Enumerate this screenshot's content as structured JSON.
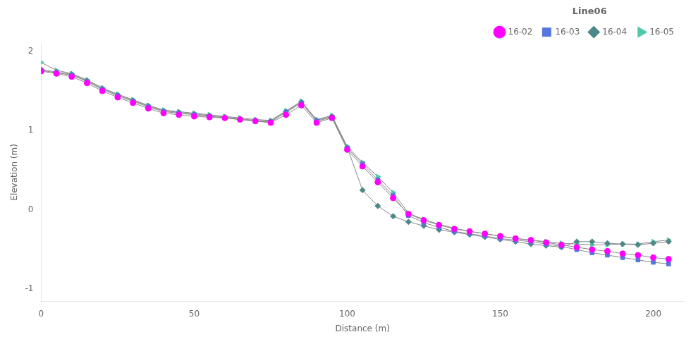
{
  "chart_data": {
    "type": "line",
    "title": "Line06",
    "xlabel": "Distance (m)",
    "ylabel": "Elevation (m)",
    "xlim": [
      0,
      210
    ],
    "ylim": [
      -1.15,
      2.1
    ],
    "xticks": [
      0,
      50,
      100,
      150,
      200
    ],
    "yticks": [
      -1,
      0,
      1,
      2
    ],
    "grid": false,
    "legend": "upper right",
    "color": "#888888",
    "x": [
      0,
      5,
      10,
      15,
      20,
      25,
      30,
      35,
      40,
      45,
      50,
      55,
      60,
      65,
      70,
      75,
      80,
      85,
      90,
      95,
      100,
      105,
      110,
      115,
      120,
      125,
      130,
      135,
      140,
      145,
      150,
      155,
      160,
      165,
      170,
      175,
      180,
      185,
      190,
      195,
      200,
      205
    ],
    "series": [
      {
        "name": "16-02",
        "color": "#ff00ff",
        "marker": "circle",
        "values": [
          1.75,
          1.72,
          1.68,
          1.6,
          1.5,
          1.42,
          1.35,
          1.28,
          1.22,
          1.2,
          1.18,
          1.17,
          1.16,
          1.14,
          1.12,
          1.1,
          1.2,
          1.32,
          1.1,
          1.16,
          0.76,
          0.55,
          0.35,
          0.15,
          -0.05,
          -0.13,
          -0.19,
          -0.24,
          -0.27,
          -0.3,
          -0.33,
          -0.36,
          -0.38,
          -0.41,
          -0.44,
          -0.47,
          -0.5,
          -0.52,
          -0.55,
          -0.57,
          -0.6,
          -0.62
        ]
      },
      {
        "name": "16-03",
        "color": "#5577dd",
        "marker": "square",
        "values": [
          1.76,
          1.73,
          1.7,
          1.62,
          1.52,
          1.44,
          1.37,
          1.3,
          1.24,
          1.22,
          1.2,
          1.18,
          1.16,
          1.14,
          1.12,
          1.11,
          1.23,
          1.35,
          1.12,
          1.17,
          0.78,
          0.58,
          0.38,
          0.18,
          -0.07,
          -0.16,
          -0.22,
          -0.27,
          -0.3,
          -0.33,
          -0.36,
          -0.38,
          -0.4,
          -0.43,
          -0.46,
          -0.5,
          -0.54,
          -0.57,
          -0.6,
          -0.63,
          -0.66,
          -0.68
        ]
      },
      {
        "name": "16-04",
        "color": "#4d8888",
        "marker": "diamond",
        "values": [
          1.77,
          1.74,
          1.71,
          1.63,
          1.53,
          1.45,
          1.38,
          1.31,
          1.25,
          1.23,
          1.21,
          1.19,
          1.17,
          1.15,
          1.13,
          1.12,
          1.24,
          1.36,
          1.13,
          1.18,
          0.79,
          0.25,
          0.05,
          -0.08,
          -0.15,
          -0.2,
          -0.25,
          -0.28,
          -0.31,
          -0.34,
          -0.37,
          -0.4,
          -0.43,
          -0.45,
          -0.47,
          -0.4,
          -0.4,
          -0.42,
          -0.43,
          -0.44,
          -0.42,
          -0.4
        ]
      },
      {
        "name": "16-05",
        "color": "#50c8a8",
        "marker": "triangle-right",
        "values": [
          1.86,
          1.76,
          1.72,
          1.64,
          1.54,
          1.46,
          1.39,
          1.32,
          1.26,
          1.24,
          1.22,
          1.2,
          1.18,
          1.16,
          1.14,
          1.13,
          1.25,
          1.37,
          1.14,
          1.19,
          0.8,
          0.6,
          0.42,
          0.22,
          -0.04,
          -0.12,
          -0.18,
          -0.23,
          -0.27,
          -0.3,
          -0.33,
          -0.36,
          -0.38,
          -0.4,
          -0.42,
          -0.43,
          -0.44,
          -0.44,
          -0.43,
          -0.43,
          -0.4,
          -0.38
        ]
      }
    ]
  }
}
